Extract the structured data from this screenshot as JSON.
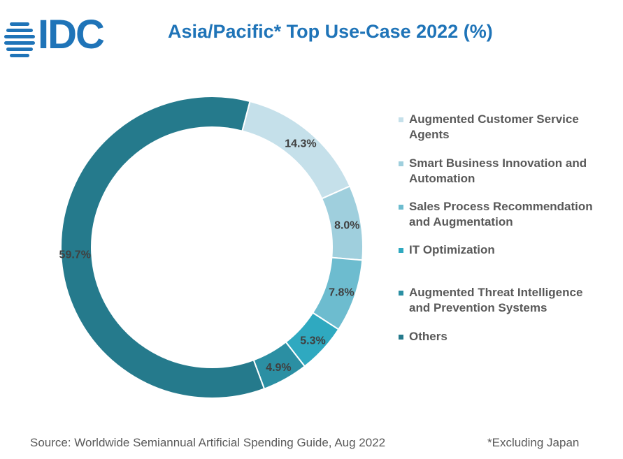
{
  "header": {
    "logo_text": "IDC",
    "title": "Asia/Pacific* Top Use-Case 2022 (%)"
  },
  "chart_data": {
    "type": "pie",
    "donut": true,
    "title": "Asia/Pacific* Top Use-Case 2022 (%)",
    "legend_position": "right",
    "categories": [
      "Augmented Customer Service Agents",
      "Smart Business Innovation and Automation",
      "Sales Process Recommendation and Augmentation",
      "IT Optimization",
      "Augmented Threat Intelligence and Prevention Systems",
      "Others"
    ],
    "values": [
      14.3,
      8.0,
      7.8,
      5.3,
      4.9,
      59.7
    ],
    "labels": [
      "14.3%",
      "8.0%",
      "7.8%",
      "5.3%",
      "4.9%",
      "59.7%"
    ],
    "colors": [
      "#c5e0ea",
      "#9fcfdd",
      "#6dbccf",
      "#2fa9c0",
      "#2b8fa3",
      "#257a8c"
    ]
  },
  "legend": {
    "items": [
      {
        "line1": "Augmented Customer Service",
        "line2": "Agents"
      },
      {
        "line1": "Smart Business Innovation and",
        "line2": "Automation"
      },
      {
        "line1": "Sales Process Recommendation",
        "line2": "and Augmentation"
      },
      {
        "line1": "IT Optimization",
        "line2": ""
      },
      {
        "line1": "Augmented Threat Intelligence",
        "line2": "and Prevention Systems"
      },
      {
        "line1": "Others",
        "line2": ""
      }
    ]
  },
  "footer": {
    "source": "Source: Worldwide Semiannual Artificial Spending Guide, Aug 2022",
    "note": "*Excluding Japan"
  }
}
